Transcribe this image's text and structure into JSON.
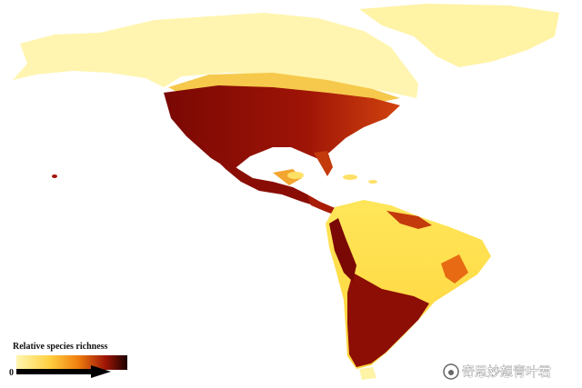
{
  "legend": {
    "title": "Relative species richness",
    "min_label": "0"
  },
  "watermark": "奇思妙想青叶君"
}
